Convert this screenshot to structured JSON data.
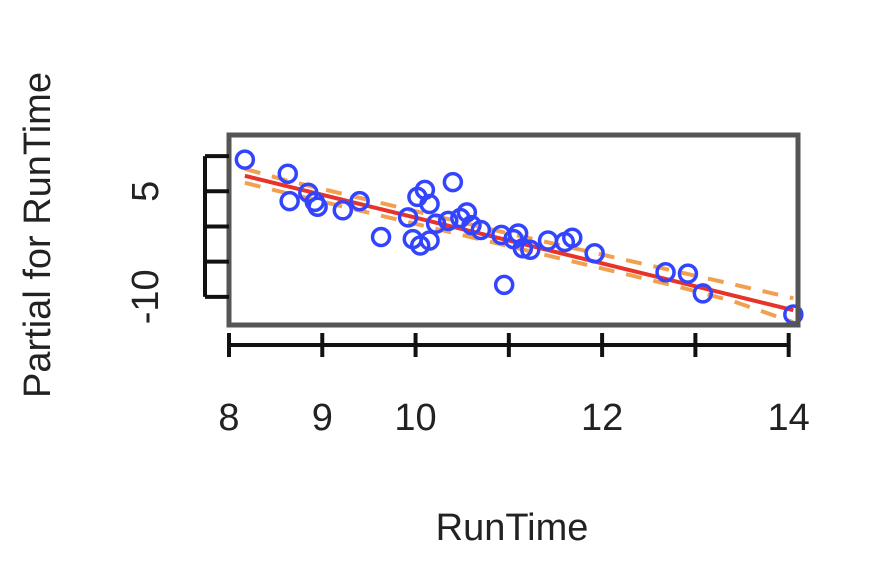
{
  "chart_data": {
    "type": "scatter",
    "title": "",
    "xlabel": "RunTime",
    "ylabel": "Partial for RunTime",
    "xlim": [
      8,
      14.1
    ],
    "ylim": [
      -14,
      13
    ],
    "x_ticks": [
      8,
      9,
      10,
      11,
      12,
      13,
      14
    ],
    "x_tick_labels": [
      "8",
      "9",
      "10",
      "",
      "12",
      "",
      "14"
    ],
    "y_ticks": [
      -15,
      -10,
      -5,
      0,
      5,
      10
    ],
    "y_tick_labels": [
      "",
      "-10",
      "",
      "",
      "5",
      ""
    ],
    "grid": false,
    "legend": "none",
    "points": [
      {
        "x": 8.17,
        "y": 9.5
      },
      {
        "x": 8.63,
        "y": 7.5
      },
      {
        "x": 8.65,
        "y": 3.6
      },
      {
        "x": 8.85,
        "y": 4.8
      },
      {
        "x": 8.92,
        "y": 3.5
      },
      {
        "x": 8.95,
        "y": 2.8
      },
      {
        "x": 9.22,
        "y": 2.3
      },
      {
        "x": 9.4,
        "y": 3.6
      },
      {
        "x": 9.63,
        "y": -1.5
      },
      {
        "x": 9.92,
        "y": 1.3
      },
      {
        "x": 9.97,
        "y": -1.8
      },
      {
        "x": 10.02,
        "y": 4.2
      },
      {
        "x": 10.05,
        "y": -2.7
      },
      {
        "x": 10.1,
        "y": 5.2
      },
      {
        "x": 10.15,
        "y": 3.2
      },
      {
        "x": 10.15,
        "y": -2.0
      },
      {
        "x": 10.22,
        "y": 0.4
      },
      {
        "x": 10.35,
        "y": 0.8
      },
      {
        "x": 10.4,
        "y": 6.3
      },
      {
        "x": 10.48,
        "y": 1.2
      },
      {
        "x": 10.55,
        "y": 2.0
      },
      {
        "x": 10.6,
        "y": 0.2
      },
      {
        "x": 10.7,
        "y": -0.5
      },
      {
        "x": 10.92,
        "y": -1.2
      },
      {
        "x": 10.95,
        "y": -8.3
      },
      {
        "x": 11.05,
        "y": -1.8
      },
      {
        "x": 11.1,
        "y": -1.0
      },
      {
        "x": 11.15,
        "y": -3.1
      },
      {
        "x": 11.23,
        "y": -3.3
      },
      {
        "x": 11.42,
        "y": -2.0
      },
      {
        "x": 11.6,
        "y": -2.2
      },
      {
        "x": 11.68,
        "y": -1.6
      },
      {
        "x": 11.92,
        "y": -3.8
      },
      {
        "x": 12.68,
        "y": -6.5
      },
      {
        "x": 12.92,
        "y": -6.7
      },
      {
        "x": 13.08,
        "y": -9.5
      },
      {
        "x": 14.05,
        "y": -12.5
      }
    ],
    "fit_line": {
      "x": [
        8.17,
        14.05
      ],
      "y": [
        7.2,
        -11.9
      ]
    },
    "ci_upper": {
      "x": [
        8.17,
        8.6,
        9.2,
        9.8,
        10.4,
        11.0,
        11.6,
        12.2,
        12.8,
        13.4,
        14.05
      ],
      "y": [
        8.2,
        6.6,
        4.7,
        2.8,
        0.9,
        -1.0,
        -2.8,
        -4.6,
        -6.4,
        -8.2,
        -10.2
      ]
    },
    "ci_lower": {
      "x": [
        8.17,
        8.6,
        9.2,
        9.8,
        10.4,
        11.0,
        11.6,
        12.2,
        12.8,
        13.4,
        14.05
      ],
      "y": [
        6.2,
        4.8,
        2.9,
        1.0,
        -0.9,
        -2.8,
        -4.7,
        -6.6,
        -8.5,
        -10.6,
        -13.6
      ]
    },
    "colors": {
      "points": "#3344ff",
      "fit_line": "#e8332a",
      "ci": "#f0a050",
      "axis": "#111111",
      "box": "#555555"
    }
  }
}
